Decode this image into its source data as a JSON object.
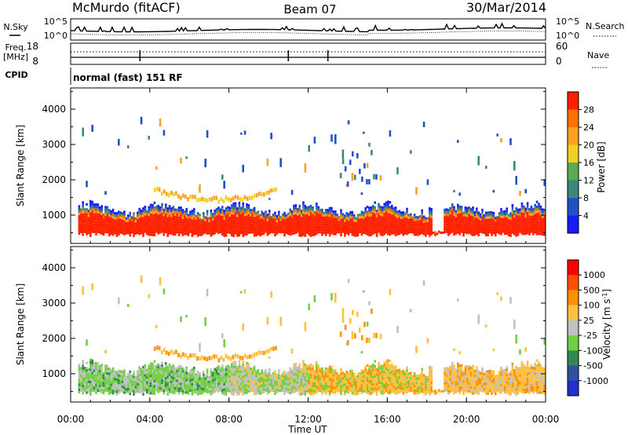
{
  "header": {
    "station": "McMurdo (fitACF)",
    "beam": "Beam 07",
    "date": "30/Mar/2014"
  },
  "noise_panel": {
    "left_label": "N.Sky",
    "left_ticks": [
      "10^5",
      "10^0"
    ],
    "right_label": "N.Search",
    "right_ticks": [
      "10^5",
      "10^0"
    ]
  },
  "freq_panel": {
    "left_label_line1": "Freq.",
    "left_label_line2": "[MHz]",
    "left_ticks": [
      "18",
      "8"
    ],
    "right_label": "Nave",
    "right_ticks": [
      "60",
      "0"
    ]
  },
  "cpid": {
    "label": "CPID",
    "value": "normal (fast) 151 RF"
  },
  "x_axis": {
    "label": "Time UT",
    "ticks": [
      "00:00",
      "04:00",
      "08:00",
      "12:00",
      "16:00",
      "20:00",
      "00:00"
    ]
  },
  "chart_data": [
    {
      "type": "heatmap",
      "quantity": "Power",
      "ylabel": "Slant Range [km]",
      "xlabel": "",
      "yticks": [
        "1000",
        "2000",
        "3000",
        "4000"
      ],
      "ylim": [
        200,
        4600
      ],
      "xlim_hours": [
        0,
        24
      ],
      "colorbar": {
        "label": "Power [dB]",
        "ticks": [
          "4",
          "8",
          "12",
          "16",
          "20",
          "24",
          "28"
        ],
        "colors": [
          "#1a1aff",
          "#2250c8",
          "#3a8a7a",
          "#5aaa50",
          "#f0d020",
          "#ffa020",
          "#ff7000",
          "#ff2000"
        ]
      }
    },
    {
      "type": "heatmap",
      "quantity": "Velocity",
      "ylabel": "Slant Range [km]",
      "xlabel": "Time UT",
      "yticks": [
        "1000",
        "2000",
        "3000",
        "4000"
      ],
      "ylim": [
        200,
        4600
      ],
      "xlim_hours": [
        0,
        24
      ],
      "colorbar": {
        "label": "Velocity [m s",
        "label_sup": "-1",
        "label_end": "]",
        "ticks": [
          "1000",
          "500",
          "100",
          "25",
          "-25",
          "-100",
          "-500",
          "-1000"
        ],
        "colors": [
          "#2030d0",
          "#3050a0",
          "#2e8a50",
          "#70d040",
          "#c0c0c0",
          "#ffc040",
          "#ff9000",
          "#ff5000",
          "#ff0000"
        ]
      }
    }
  ]
}
